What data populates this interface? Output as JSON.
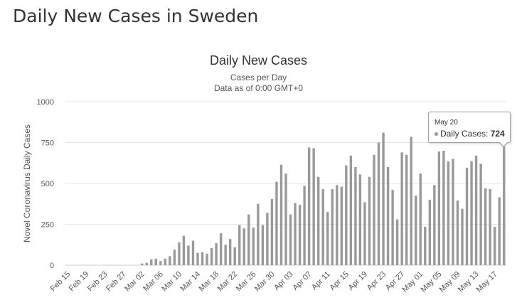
{
  "page": {
    "title": "Daily New Cases in Sweden"
  },
  "chart_data": {
    "type": "bar",
    "title": "Daily New Cases",
    "subtitle": "Cases per Day",
    "subtitle2": "Data as of 0:00 GMT+0",
    "ylabel": "Novel Coronavirus Daily Cases",
    "xlabel": "",
    "ylim": [
      0,
      1000
    ],
    "yticks": [
      0,
      250,
      500,
      750,
      1000
    ],
    "grid": true,
    "bar_color": "#999999",
    "start_date": "2020-02-15",
    "xtick_labels": [
      "Feb 15",
      "Feb 19",
      "Feb 23",
      "Feb 27",
      "Mar 02",
      "Mar 06",
      "Mar 10",
      "Mar 14",
      "Mar 18",
      "Mar 22",
      "Mar 26",
      "Mar 30",
      "Apr 03",
      "Apr 07",
      "Apr 11",
      "Apr 15",
      "Apr 19",
      "Apr 23",
      "Apr 27",
      "May 01",
      "May 05",
      "May 09",
      "May 13",
      "May 17"
    ],
    "series": [
      {
        "name": "Daily Cases",
        "values": [
          0,
          0,
          0,
          0,
          0,
          0,
          0,
          0,
          0,
          0,
          0,
          0,
          0,
          0,
          0,
          0,
          10,
          15,
          35,
          40,
          25,
          40,
          55,
          95,
          140,
          180,
          120,
          150,
          75,
          80,
          70,
          105,
          135,
          195,
          125,
          160,
          110,
          245,
          225,
          310,
          230,
          375,
          245,
          320,
          405,
          510,
          615,
          560,
          310,
          380,
          370,
          485,
          720,
          715,
          540,
          465,
          325,
          465,
          490,
          480,
          610,
          670,
          600,
          555,
          385,
          540,
          675,
          750,
          810,
          600,
          460,
          280,
          690,
          675,
          785,
          425,
          560,
          235,
          400,
          490,
          695,
          700,
          635,
          650,
          395,
          345,
          595,
          635,
          670,
          620,
          470,
          465,
          235,
          415,
          724
        ]
      }
    ]
  },
  "tooltip": {
    "date": "May 20",
    "series_label": "Daily Cases: ",
    "value": "724"
  }
}
